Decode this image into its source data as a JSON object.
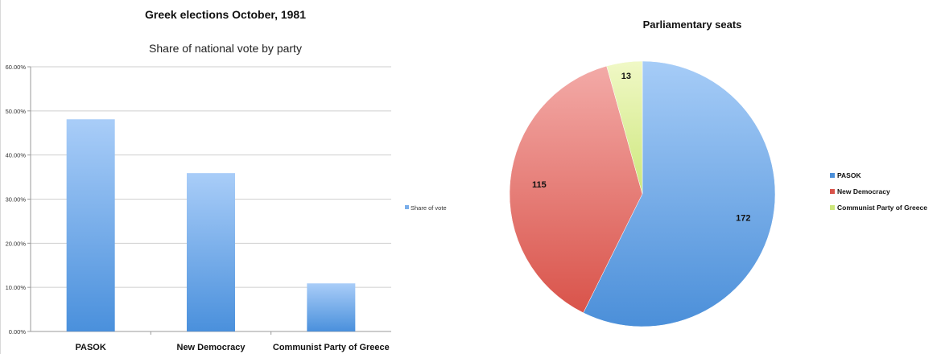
{
  "chart_data": [
    {
      "type": "bar",
      "title": "Greek elections October, 1981",
      "subtitle": "Share of national vote by party",
      "categories": [
        "PASOK",
        "New Democracy",
        "Communist Party of Greece"
      ],
      "series": [
        {
          "name": "Share of vote",
          "values": [
            48.1,
            35.9,
            10.9
          ]
        }
      ],
      "ylim": [
        0,
        60
      ],
      "yticks": [
        "0.00%",
        "10.00%",
        "20.00%",
        "30.00%",
        "40.00%",
        "50.00%",
        "60.00%"
      ],
      "grid": true,
      "legend_position": "right",
      "colors": {
        "bar_top": "#a9cdf8",
        "bar_bottom": "#4a90dc"
      }
    },
    {
      "type": "pie",
      "title": "Parliamentary seats",
      "labels": [
        "PASOK",
        "New Democracy",
        "Communist Party of Greece"
      ],
      "values": [
        172,
        115,
        13
      ],
      "legend_position": "right",
      "colors": {
        "PASOK": [
          "#a6ccf7",
          "#4b8fd9"
        ],
        "New Democracy": [
          "#f3aaa7",
          "#d9534a"
        ],
        "Communist Party of Greece": [
          "#f0f8c6",
          "#cde77c"
        ]
      }
    }
  ]
}
